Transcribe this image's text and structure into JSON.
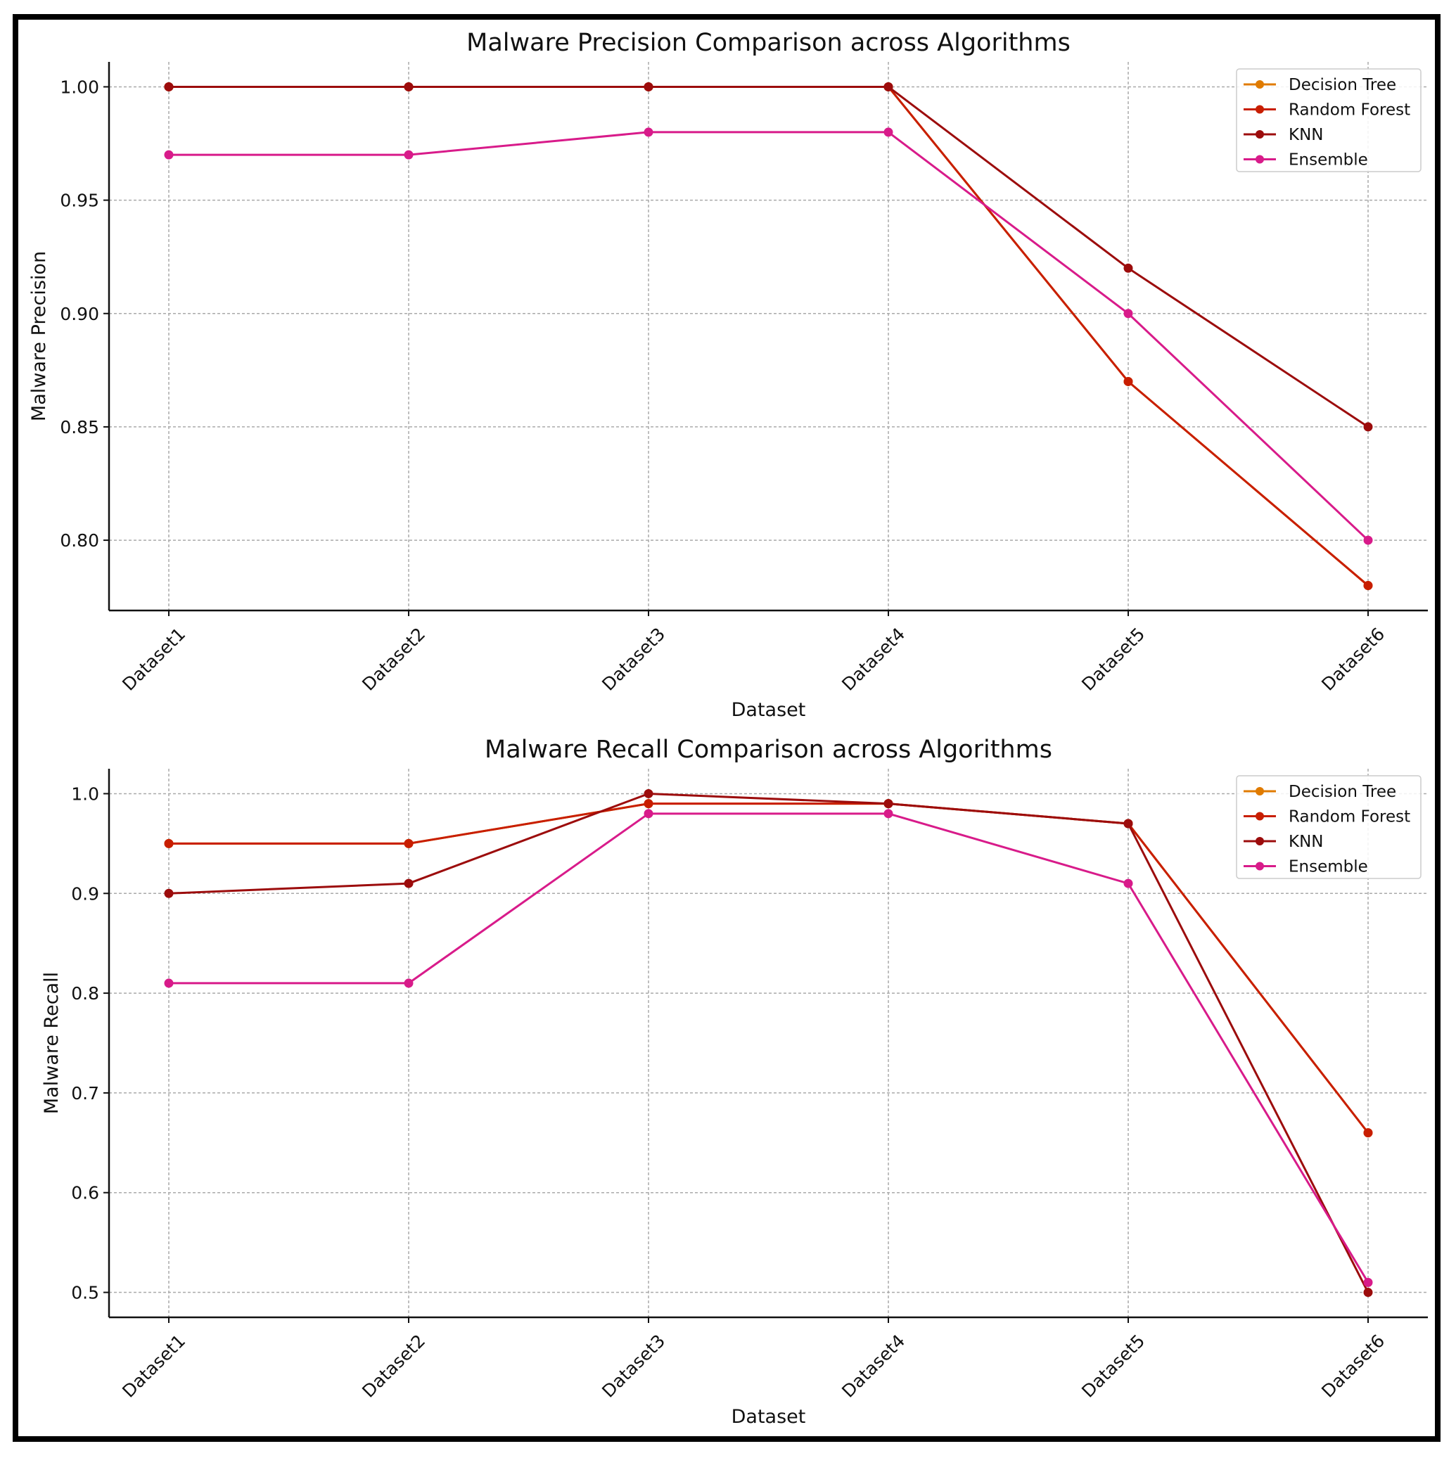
{
  "chart_data": [
    {
      "type": "line",
      "title": "Malware Precision Comparison across Algorithms",
      "xlabel": "Dataset",
      "ylabel": "Malware Precision",
      "categories": [
        "Dataset1",
        "Dataset2",
        "Dataset3",
        "Dataset4",
        "Dataset5",
        "Dataset6"
      ],
      "ylim": [
        0.769,
        1.011
      ],
      "yticks": [
        0.8,
        0.85,
        0.9,
        0.95,
        1.0
      ],
      "ytick_labels": [
        "0.80",
        "0.85",
        "0.90",
        "0.95",
        "1.00"
      ],
      "grid": true,
      "legend_position": "top-right",
      "series": [
        {
          "name": "Decision Tree",
          "color": "#e07b00",
          "values": [
            1.0,
            1.0,
            1.0,
            1.0,
            0.87,
            0.78
          ]
        },
        {
          "name": "Random Forest",
          "color": "#c81e00",
          "values": [
            1.0,
            1.0,
            1.0,
            1.0,
            0.87,
            0.78
          ]
        },
        {
          "name": "KNN",
          "color": "#9c0c0c",
          "values": [
            1.0,
            1.0,
            1.0,
            1.0,
            0.92,
            0.85
          ]
        },
        {
          "name": "Ensemble",
          "color": "#d81b8a",
          "values": [
            0.97,
            0.97,
            0.98,
            0.98,
            0.9,
            0.8
          ]
        }
      ]
    },
    {
      "type": "line",
      "title": "Malware Recall Comparison across Algorithms",
      "xlabel": "Dataset",
      "ylabel": "Malware Recall",
      "categories": [
        "Dataset1",
        "Dataset2",
        "Dataset3",
        "Dataset4",
        "Dataset5",
        "Dataset6"
      ],
      "ylim": [
        0.475,
        1.025
      ],
      "yticks": [
        0.5,
        0.6,
        0.7,
        0.8,
        0.9,
        1.0
      ],
      "ytick_labels": [
        "0.5",
        "0.6",
        "0.7",
        "0.8",
        "0.9",
        "1.0"
      ],
      "grid": true,
      "legend_position": "top-right",
      "series": [
        {
          "name": "Decision Tree",
          "color": "#e07b00",
          "values": [
            0.95,
            0.95,
            0.99,
            0.99,
            0.97,
            0.66
          ]
        },
        {
          "name": "Random Forest",
          "color": "#c81e00",
          "values": [
            0.95,
            0.95,
            0.99,
            0.99,
            0.97,
            0.66
          ]
        },
        {
          "name": "KNN",
          "color": "#9c0c0c",
          "values": [
            0.9,
            0.91,
            1.0,
            0.99,
            0.97,
            0.5
          ]
        },
        {
          "name": "Ensemble",
          "color": "#d81b8a",
          "values": [
            0.81,
            0.81,
            0.98,
            0.98,
            0.91,
            0.51
          ]
        }
      ]
    }
  ]
}
